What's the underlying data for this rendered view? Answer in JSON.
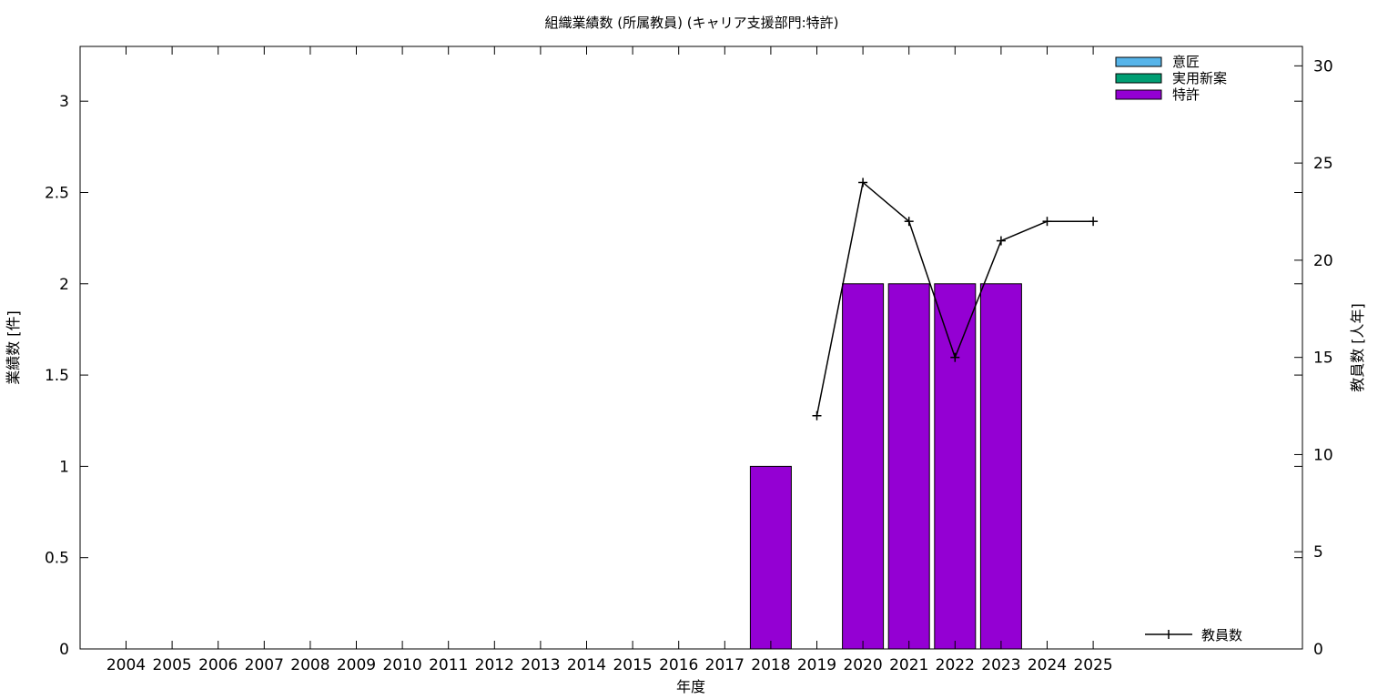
{
  "chart_data": {
    "type": "bar",
    "title": "組織業績数 (所属教員) (キャリア支援部門:特許)",
    "xlabel": "年度",
    "ylabel": "業績数 [件]",
    "y2label": "教員数 [人年]",
    "categories": [
      "2004",
      "2005",
      "2006",
      "2007",
      "2008",
      "2009",
      "2010",
      "2011",
      "2012",
      "2013",
      "2014",
      "2015",
      "2016",
      "2017",
      "2018",
      "2019",
      "2020",
      "2021",
      "2022",
      "2023",
      "2024",
      "2025"
    ],
    "ylim": [
      0,
      3.3
    ],
    "y2lim": [
      0,
      31
    ],
    "yticks": [
      "0",
      "0.5",
      "1",
      "1.5",
      "2",
      "2.5",
      "3"
    ],
    "y2ticks": [
      "0",
      "5",
      "10",
      "15",
      "20",
      "25",
      "30"
    ],
    "stacked": true,
    "series": [
      {
        "name": "意匠",
        "color": "#56b4e9",
        "values": [
          0,
          0,
          0,
          0,
          0,
          0,
          0,
          0,
          0,
          0,
          0,
          0,
          0,
          0,
          0,
          0,
          0,
          0,
          0,
          0,
          0,
          0
        ]
      },
      {
        "name": "実用新案",
        "color": "#009e73",
        "values": [
          0,
          0,
          0,
          0,
          0,
          0,
          0,
          0,
          0,
          0,
          0,
          0,
          0,
          0,
          0,
          0,
          0,
          0,
          0,
          0,
          0,
          0
        ]
      },
      {
        "name": "特許",
        "color": "#9400d3",
        "values": [
          0,
          0,
          0,
          0,
          0,
          0,
          0,
          0,
          0,
          0,
          0,
          0,
          0,
          0,
          1,
          0,
          2,
          2,
          2,
          2,
          0,
          0
        ]
      }
    ],
    "line_series": {
      "name": "教員数",
      "axis": "y2",
      "color": "#000000",
      "x": [
        "2019",
        "2020",
        "2021",
        "2022",
        "2023",
        "2024",
        "2025"
      ],
      "values": [
        12,
        24,
        22,
        15,
        21,
        22,
        22
      ]
    },
    "legend_position": "top-right",
    "line_legend_position": "bottom-right",
    "grid": false
  }
}
